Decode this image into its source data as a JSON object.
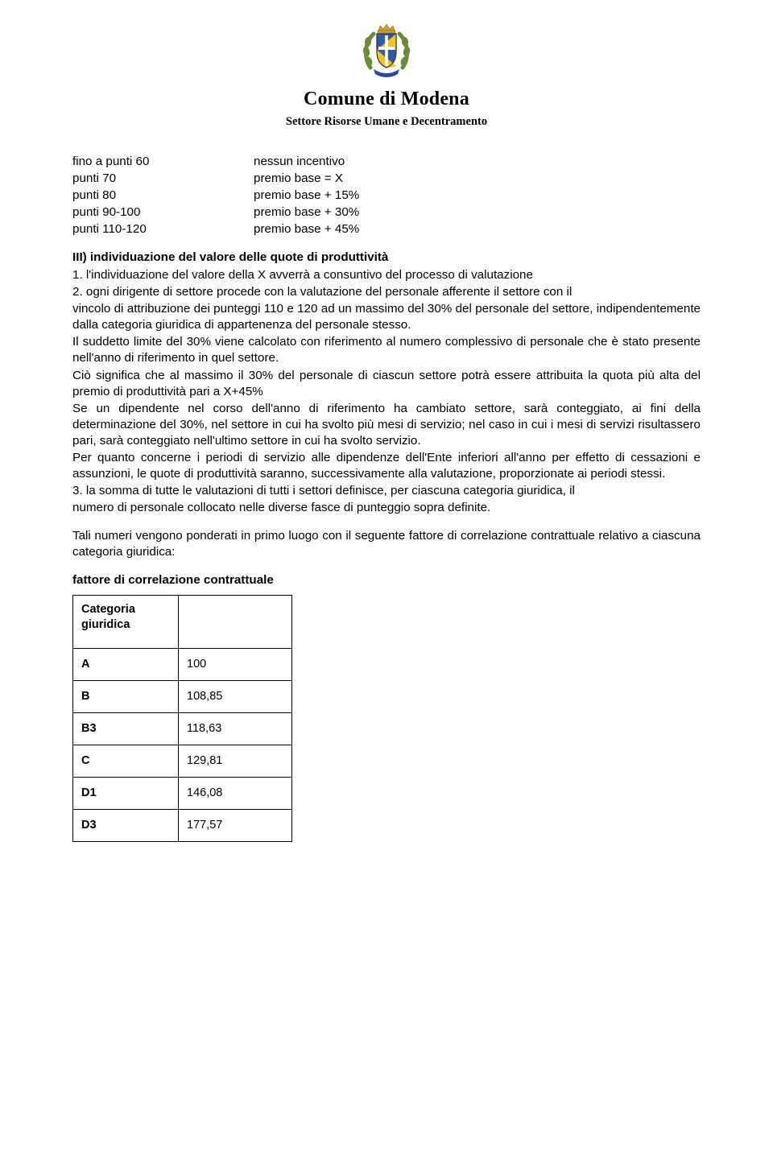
{
  "header": {
    "org_title": "Comune di Modena",
    "dept_line": "Settore Risorse Umane e Decentramento",
    "crest": {
      "wreath_color": "#6a8a3a",
      "shield_blue": "#2e5aa8",
      "shield_yellow": "#f3c321",
      "crown_gold": "#caa23a",
      "ribbon_blue": "#2848a0",
      "outline": "#3a3a3a"
    }
  },
  "premio_rows": [
    {
      "left": "fino a punti 60",
      "right": "nessun incentivo"
    },
    {
      "left": "punti 70",
      "right": "premio base = X"
    },
    {
      "left": "punti 80",
      "right": "premio base + 15%"
    },
    {
      "left": "punti 90-100",
      "right": "premio base + 30%"
    },
    {
      "left": "punti 110-120",
      "right": "premio base + 45%"
    }
  ],
  "section3_heading": "III) individuazione del valore delle quote di produttività",
  "para1": "1. l'individuazione del valore della X avverrà a consuntivo del processo di valutazione",
  "para2a": "2. ogni dirigente di settore procede con la valutazione del personale afferente il settore con il",
  "para2b": "vincolo di attribuzione dei punteggi 110 e 120 ad un massimo del 30% del personale del settore, indipendentemente dalla categoria giuridica di appartenenza del personale stesso.",
  "para3": "Il suddetto limite del 30% viene calcolato con riferimento al numero complessivo di personale che è stato presente nell'anno di riferimento in quel settore.",
  "para4": "Ciò significa che al massimo il 30% del personale di ciascun settore potrà essere attribuita la quota più alta del premio di produttività pari a X+45%",
  "para5": "Se un dipendente nel corso dell'anno di riferimento ha cambiato settore, sarà conteggiato, ai fini della determinazione del 30%, nel settore in cui ha svolto più mesi di servizio; nel caso in cui i mesi di servizi risultassero pari, sarà conteggiato nell'ultimo settore in cui ha svolto servizio.",
  "para6": "Per quanto concerne i periodi di servizio alle dipendenze dell'Ente inferiori all'anno per effetto di cessazioni e assunzioni, le quote di produttività saranno, successivamente alla valutazione, proporzionate ai periodi stessi.",
  "para7": "3. la somma di tutte le valutazioni di tutti i settori definisce, per ciascuna categoria giuridica, il",
  "para8": "numero di personale collocato nelle diverse fasce di punteggio sopra definite.",
  "para9": "Tali numeri vengono ponderati in primo luogo con il seguente fattore di correlazione contrattuale relativo a ciascuna categoria giuridica:",
  "factor_heading": "fattore di correlazione contrattuale",
  "factor_table": {
    "header_label": "Categoria giuridica",
    "rows": [
      {
        "cat": "A",
        "val": "100"
      },
      {
        "cat": "B",
        "val": "108,85"
      },
      {
        "cat": "B3",
        "val": "118,63"
      },
      {
        "cat": "C",
        "val": "129,81"
      },
      {
        "cat": "D1",
        "val": "146,08"
      },
      {
        "cat": "D3",
        "val": "177,57"
      }
    ]
  }
}
